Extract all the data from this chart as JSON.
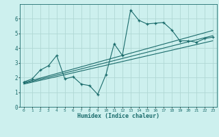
{
  "xlabel": "Humidex (Indice chaleur)",
  "bg_color": "#cdf0ee",
  "grid_color": "#b0d8d4",
  "line_color": "#1a6b6b",
  "xlim": [
    -0.5,
    23.5
  ],
  "ylim": [
    0,
    7
  ],
  "xtick_labels": [
    "0",
    "1",
    "2",
    "3",
    "4",
    "5",
    "6",
    "7",
    "8",
    "9",
    "10",
    "11",
    "12",
    "13",
    "14",
    "15",
    "16",
    "17",
    "18",
    "19",
    "20",
    "21",
    "22",
    "23"
  ],
  "ytick_labels": [
    "0",
    "1",
    "2",
    "3",
    "4",
    "5",
    "6"
  ],
  "scatter_x": [
    0,
    1,
    2,
    3,
    4,
    5,
    6,
    7,
    8,
    9,
    10,
    11,
    12,
    13,
    14,
    15,
    16,
    17,
    18,
    19,
    20,
    21,
    22,
    23
  ],
  "scatter_y": [
    1.7,
    1.9,
    2.5,
    2.8,
    3.5,
    1.9,
    2.05,
    1.55,
    1.45,
    0.85,
    2.2,
    4.3,
    3.5,
    6.6,
    5.9,
    5.65,
    5.7,
    5.75,
    5.25,
    4.5,
    4.5,
    4.4,
    4.65,
    4.75
  ],
  "reg_lines": [
    {
      "x": [
        0,
        23
      ],
      "y": [
        1.65,
        5.2
      ]
    },
    {
      "x": [
        0,
        23
      ],
      "y": [
        1.6,
        4.85
      ]
    },
    {
      "x": [
        0,
        23
      ],
      "y": [
        1.55,
        4.5
      ]
    }
  ]
}
